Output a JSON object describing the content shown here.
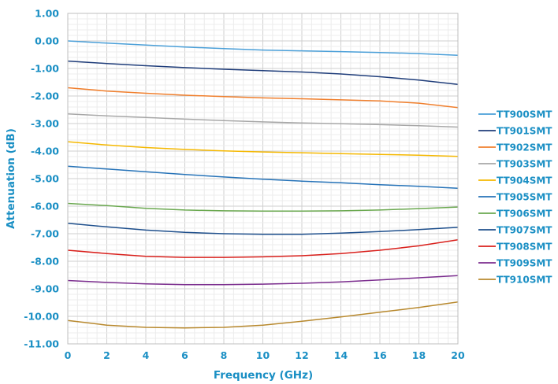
{
  "chart_data": {
    "type": "line",
    "xlabel": "Frequency (GHz)",
    "ylabel": "Attenuation (dB)",
    "xlim": [
      0,
      20
    ],
    "ylim": [
      -11,
      1
    ],
    "x_ticks": [
      "0",
      "2",
      "4",
      "6",
      "8",
      "10",
      "12",
      "14",
      "16",
      "18",
      "20"
    ],
    "y_ticks": [
      "1.00",
      "0.00",
      "-1.00",
      "-2.00",
      "-3.00",
      "-4.00",
      "-5.00",
      "-6.00",
      "-7.00",
      "-8.00",
      "-9.00",
      "-10.00",
      "-11.00"
    ],
    "grid": true,
    "legend_position": "right",
    "x": [
      0,
      2,
      4,
      6,
      8,
      10,
      12,
      14,
      16,
      18,
      20
    ],
    "series": [
      {
        "name": "TT900SMT",
        "color": "#4a9fd8",
        "values": [
          0.0,
          -0.08,
          -0.15,
          -0.22,
          -0.28,
          -0.33,
          -0.36,
          -0.39,
          -0.42,
          -0.46,
          -0.52
        ]
      },
      {
        "name": "TT901SMT",
        "color": "#1f3d7a",
        "values": [
          -0.73,
          -0.82,
          -0.9,
          -0.97,
          -1.03,
          -1.08,
          -1.13,
          -1.2,
          -1.3,
          -1.42,
          -1.58
        ]
      },
      {
        "name": "TT902SMT",
        "color": "#f07f2d",
        "values": [
          -1.7,
          -1.82,
          -1.9,
          -1.97,
          -2.02,
          -2.07,
          -2.1,
          -2.14,
          -2.18,
          -2.26,
          -2.42
        ]
      },
      {
        "name": "TT903SMT",
        "color": "#a7a7a7",
        "values": [
          -2.65,
          -2.72,
          -2.78,
          -2.84,
          -2.89,
          -2.94,
          -2.98,
          -3.01,
          -3.04,
          -3.08,
          -3.13
        ]
      },
      {
        "name": "TT904SMT",
        "color": "#f5b800",
        "values": [
          -3.66,
          -3.78,
          -3.87,
          -3.94,
          -3.99,
          -4.03,
          -4.06,
          -4.09,
          -4.12,
          -4.15,
          -4.19
        ]
      },
      {
        "name": "TT905SMT",
        "color": "#2673b8",
        "values": [
          -4.55,
          -4.65,
          -4.75,
          -4.85,
          -4.94,
          -5.02,
          -5.09,
          -5.15,
          -5.22,
          -5.28,
          -5.35
        ]
      },
      {
        "name": "TT906SMT",
        "color": "#6aa84f",
        "values": [
          -5.9,
          -5.98,
          -6.08,
          -6.14,
          -6.17,
          -6.18,
          -6.18,
          -6.17,
          -6.14,
          -6.09,
          -6.03
        ]
      },
      {
        "name": "TT907SMT",
        "color": "#1e4f8c",
        "values": [
          -6.62,
          -6.75,
          -6.87,
          -6.95,
          -7.0,
          -7.02,
          -7.02,
          -6.98,
          -6.92,
          -6.85,
          -6.77
        ]
      },
      {
        "name": "TT908SMT",
        "color": "#d9201c",
        "values": [
          -7.6,
          -7.72,
          -7.82,
          -7.86,
          -7.86,
          -7.84,
          -7.8,
          -7.72,
          -7.6,
          -7.44,
          -7.22
        ]
      },
      {
        "name": "TT909SMT",
        "color": "#7b2d8e",
        "values": [
          -8.7,
          -8.77,
          -8.82,
          -8.85,
          -8.85,
          -8.83,
          -8.8,
          -8.75,
          -8.68,
          -8.6,
          -8.52
        ]
      },
      {
        "name": "TT910SMT",
        "color": "#b8892e",
        "values": [
          -10.15,
          -10.32,
          -10.4,
          -10.42,
          -10.4,
          -10.32,
          -10.18,
          -10.02,
          -9.85,
          -9.68,
          -9.48
        ]
      }
    ]
  }
}
